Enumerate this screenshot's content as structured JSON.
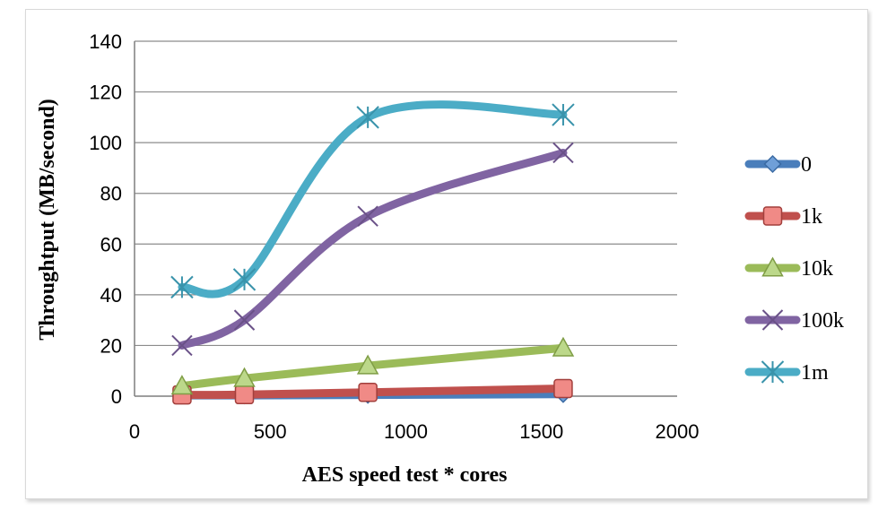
{
  "chart_data": {
    "type": "line",
    "title": "",
    "xlabel": "AES speed test * cores",
    "ylabel": "Throughtput (MB/second)",
    "xlim": [
      0,
      2000
    ],
    "ylim": [
      0,
      140
    ],
    "xticks": [
      0,
      500,
      1000,
      1500,
      2000
    ],
    "yticks": [
      0,
      20,
      40,
      60,
      80,
      100,
      120,
      140
    ],
    "grid": "horizontal",
    "legend_position": "right",
    "x": [
      175,
      405,
      860,
      1580
    ],
    "series": [
      {
        "name": "0",
        "color": "#4a7ebb",
        "marker": "diamond",
        "values": [
          0.3,
          0.3,
          0.5,
          0.8
        ]
      },
      {
        "name": "1k",
        "color": "#c0504d",
        "marker": "square",
        "values": [
          0.5,
          0.6,
          1.5,
          3
        ]
      },
      {
        "name": "10k",
        "color": "#9bbb59",
        "marker": "triangle",
        "values": [
          4,
          7,
          12,
          19
        ]
      },
      {
        "name": "100k",
        "color": "#8064a2",
        "marker": "x",
        "values": [
          20,
          30,
          71,
          96
        ]
      },
      {
        "name": "1m",
        "color": "#4bacc6",
        "marker": "star",
        "values": [
          43,
          46,
          110,
          111
        ]
      }
    ]
  }
}
